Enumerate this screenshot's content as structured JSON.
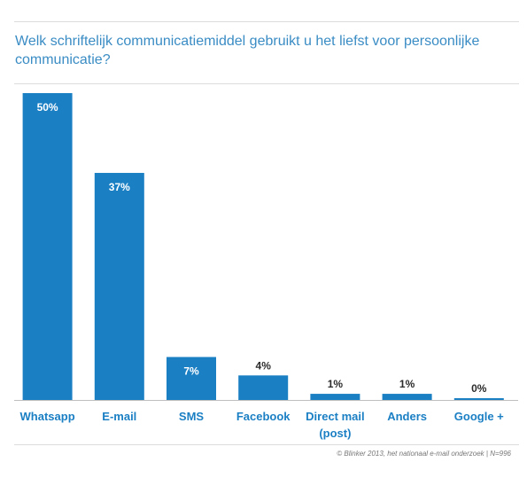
{
  "chart_data": {
    "type": "bar",
    "title": "Welk schriftelijk communicatiemiddel gebruikt u het liefst voor persoonlijke communicatie?",
    "categories": [
      "Whatsapp",
      "E-mail",
      "SMS",
      "Facebook",
      "Direct mail (post)",
      "Anders",
      "Google +"
    ],
    "category_lines": [
      [
        "Whatsapp"
      ],
      [
        "E-mail"
      ],
      [
        "SMS"
      ],
      [
        "Facebook"
      ],
      [
        "Direct mail",
        "(post)"
      ],
      [
        "Anders"
      ],
      [
        "Google +"
      ]
    ],
    "values": [
      50,
      37,
      7,
      4,
      1,
      1,
      0
    ],
    "value_labels": [
      "50%",
      "37%",
      "7%",
      "4%",
      "1%",
      "1%",
      "0%"
    ],
    "ylim": [
      0,
      50
    ],
    "xlabel": "",
    "ylabel": "",
    "grid": false,
    "legend": "none",
    "source": "© Blinker 2013, het nationaal e-mail onderzoek | N=996",
    "colors": {
      "bar": "#1b7fc4",
      "label_inside": "#ffffff",
      "label_outside": "#2b2b2b",
      "category": "#1b7fc4",
      "title": "#3a8cc4"
    }
  }
}
